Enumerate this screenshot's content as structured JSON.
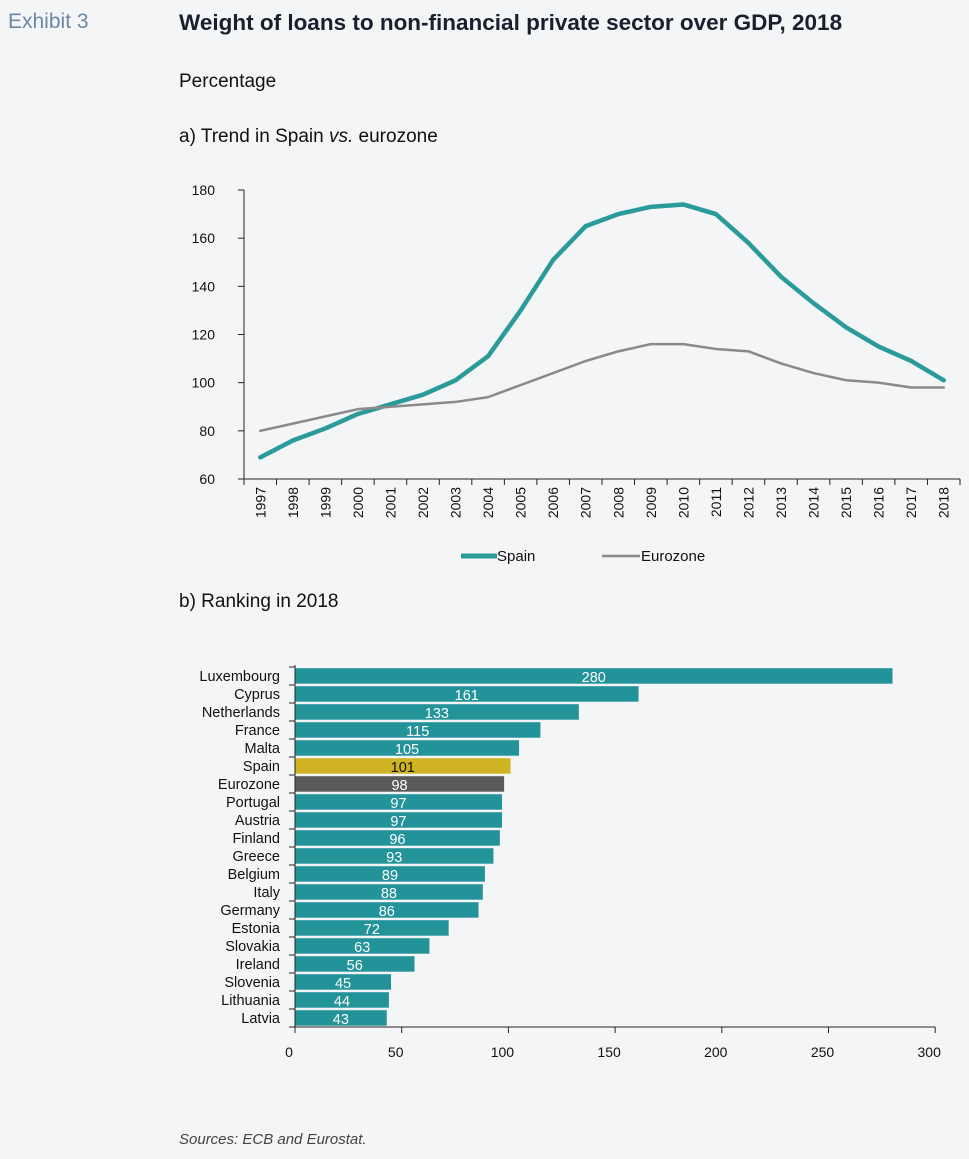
{
  "header": {
    "exhibit_label": "Exhibit 3",
    "title": "Weight of loans to non-financial private sector over GDP, 2018",
    "unit": "Percentage"
  },
  "panel_a": {
    "title_prefix": "a) Trend in Spain ",
    "title_italic": "vs.",
    "title_suffix": " eurozone"
  },
  "panel_b": {
    "title": "b) Ranking in 2018"
  },
  "sources": "Sources: ECB and Eurostat.",
  "colors": {
    "spain": "#2a9a9b",
    "eurozone": "#8a8a8a",
    "bar": "#23939a",
    "spain_bar": "#cfb323",
    "eurozone_bar": "#5a5a5a"
  },
  "chart_data": [
    {
      "type": "line",
      "x": [
        "1997",
        "1998",
        "1999",
        "2000",
        "2001",
        "2002",
        "2003",
        "2004",
        "2005",
        "2006",
        "2007",
        "2008",
        "2009",
        "2010",
        "2011",
        "2012",
        "2013",
        "2014",
        "2015",
        "2016",
        "2017",
        "2018"
      ],
      "series": [
        {
          "name": "Spain",
          "values": [
            69,
            76,
            81,
            87,
            91,
            95,
            101,
            111,
            130,
            151,
            165,
            170,
            173,
            174,
            170,
            158,
            144,
            133,
            123,
            115,
            109,
            101
          ]
        },
        {
          "name": "Eurozone",
          "values": [
            80,
            83,
            86,
            89,
            90,
            91,
            92,
            94,
            99,
            104,
            109,
            113,
            116,
            116,
            114,
            113,
            108,
            104,
            101,
            100,
            98,
            98
          ]
        }
      ],
      "ylim": [
        60,
        180
      ],
      "yticks": [
        60,
        80,
        100,
        120,
        140,
        160,
        180
      ],
      "legend": "bottom-center"
    },
    {
      "type": "bar",
      "orientation": "horizontal",
      "categories": [
        "Luxembourg",
        "Cyprus",
        "Netherlands",
        "France",
        "Malta",
        "Spain",
        "Eurozone",
        "Portugal",
        "Austria",
        "Finland",
        "Greece",
        "Belgium",
        "Italy",
        "Germany",
        "Estonia",
        "Slovakia",
        "Ireland",
        "Slovenia",
        "Lithuania",
        "Latvia"
      ],
      "values": [
        280,
        161,
        133,
        115,
        105,
        101,
        98,
        97,
        97,
        96,
        93,
        89,
        88,
        86,
        72,
        63,
        56,
        45,
        44,
        43
      ],
      "xlim": [
        0,
        300
      ],
      "xticks": [
        0,
        50,
        100,
        150,
        200,
        250,
        300
      ],
      "highlight": {
        "Spain": "#cfb323",
        "Eurozone": "#5a5a5a"
      }
    }
  ]
}
